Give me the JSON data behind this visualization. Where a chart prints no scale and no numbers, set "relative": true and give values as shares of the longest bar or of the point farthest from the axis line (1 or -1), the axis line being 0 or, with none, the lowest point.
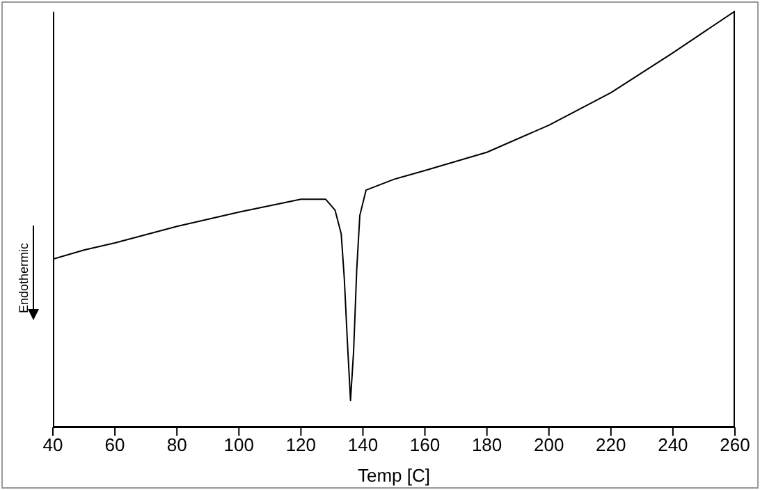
{
  "chart_data": {
    "type": "line",
    "relative": true,
    "xlabel": "Temp   [C]",
    "ylabel": "Endothermic",
    "xlim": [
      40,
      260
    ],
    "xticks": [
      40,
      60,
      80,
      100,
      120,
      140,
      160,
      180,
      200,
      220,
      240,
      260
    ],
    "grid": false,
    "legend": false,
    "marker": "none",
    "line_style": "solid",
    "x": [
      40,
      50,
      60,
      80,
      100,
      120,
      128,
      131,
      133,
      134,
      135,
      136,
      137,
      138,
      139,
      141,
      150,
      160,
      180,
      200,
      220,
      240,
      260
    ],
    "series": [
      {
        "color": "#000000",
        "values": [
          0.404,
          0.426,
          0.443,
          0.483,
          0.517,
          0.548,
          0.548,
          0.522,
          0.465,
          0.357,
          0.204,
          0.065,
          0.183,
          0.378,
          0.509,
          0.57,
          0.596,
          0.617,
          0.661,
          0.726,
          0.804,
          0.9,
          1.0
        ]
      }
    ]
  }
}
